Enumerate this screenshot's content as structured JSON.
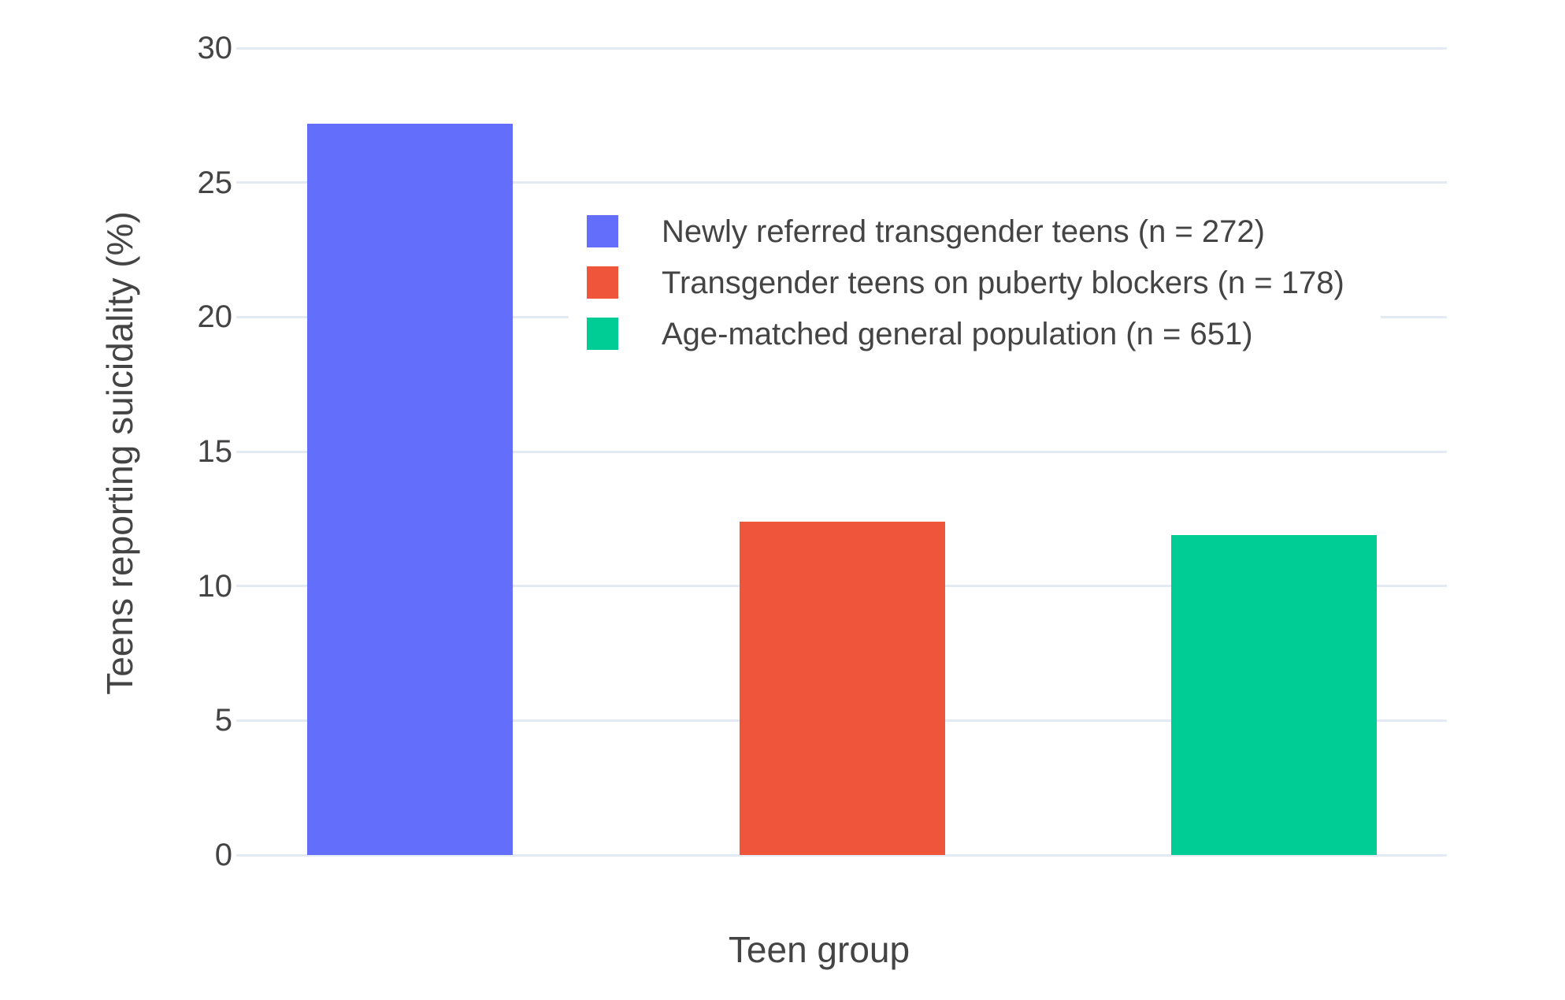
{
  "chart_data": {
    "type": "bar",
    "title": "",
    "xlabel": "Teen group",
    "ylabel": "Teens reporting suicidality (%)",
    "ylim": [
      0,
      30
    ],
    "yticks": [
      0,
      5,
      10,
      15,
      20,
      25,
      30
    ],
    "grid": true,
    "legend_position": "upper center, inside plot",
    "categories": [
      "Newly referred transgender teens (n = 272)",
      "Transgender teens on puberty blockers (n = 178)",
      "Age-matched general population (n = 651)"
    ],
    "values": [
      27.2,
      12.4,
      11.9
    ],
    "colors": [
      "#636EFA",
      "#EF553B",
      "#00CC96"
    ]
  },
  "style": {
    "grid_color": "#E3EAF3",
    "text_color": "#444444",
    "background_color": "#FFFFFF"
  }
}
